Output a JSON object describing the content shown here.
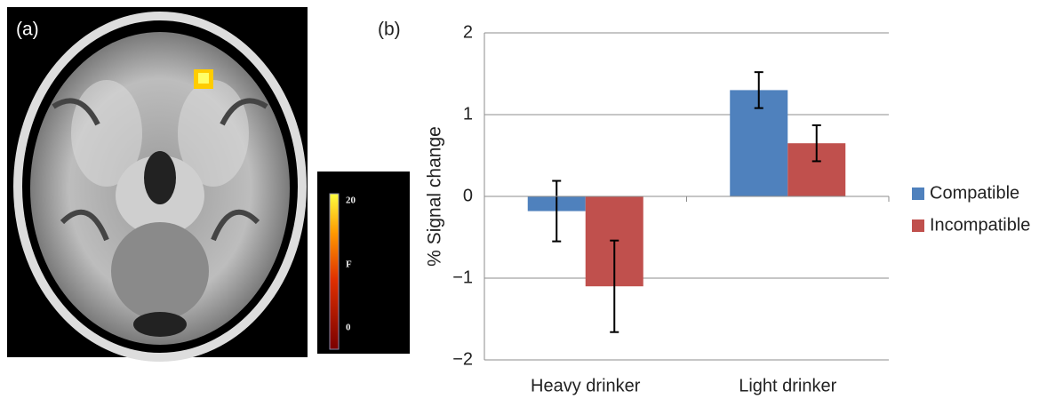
{
  "image_panel": {
    "label": "(a)",
    "colorbar": {
      "ticks": [
        20,
        0
      ],
      "label": "F",
      "lim": [
        0,
        20
      ]
    }
  },
  "chart_data": {
    "type": "bar",
    "title": "(b)",
    "y_label": "% Signal change",
    "categories": [
      "Heavy drinker",
      "Light drinker"
    ],
    "series": [
      {
        "name": "Compatible",
        "color": "#4f81bd",
        "values": [
          -0.18,
          1.3
        ],
        "errors": [
          0.37,
          0.22
        ]
      },
      {
        "name": "Incompatible",
        "color": "#c0504d",
        "values": [
          -1.1,
          0.65
        ],
        "errors": [
          0.56,
          0.22
        ]
      }
    ],
    "ylim": [
      -2,
      2
    ],
    "yticks": [
      {
        "value": -2,
        "label": "−2"
      },
      {
        "value": -1,
        "label": "−1"
      },
      0,
      1,
      2
    ],
    "grid": true,
    "legend": "right"
  }
}
